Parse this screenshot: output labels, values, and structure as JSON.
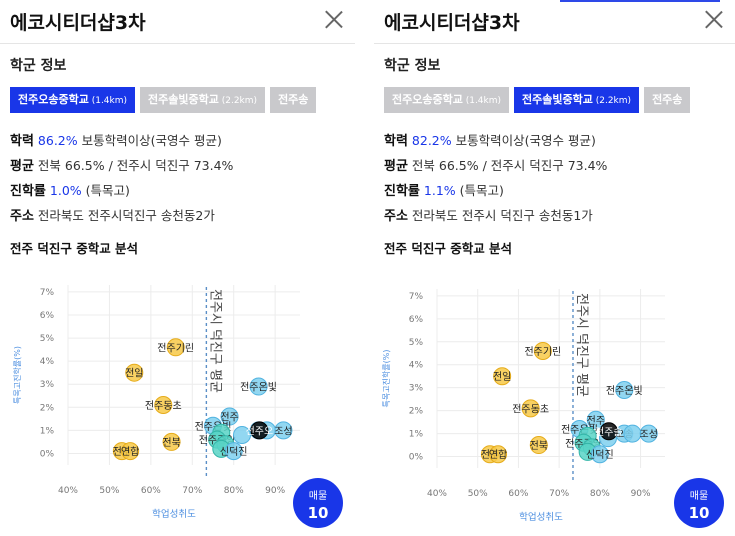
{
  "panels": [
    {
      "title": "에코시티더샵3차",
      "section_title": "학군 정보",
      "tabs": [
        {
          "name": "전주오송중학교",
          "dist": "(1.4km)",
          "active": true
        },
        {
          "name": "전주솔빛중학교",
          "dist": "(2.2km)",
          "active": false
        },
        {
          "name": "전주송",
          "dist": "",
          "active": false
        }
      ],
      "rows": {
        "academic": {
          "label": "학력",
          "value": "86.2%",
          "rest": "보통학력이상(국영수 평균)"
        },
        "average": {
          "label": "평균",
          "rest": "전북 66.5% / 전주시 덕진구 73.4%"
        },
        "advance": {
          "label": "진학률",
          "value": "1.0%",
          "rest": "(특목고)"
        },
        "address": {
          "label": "주소",
          "rest": "전라북도 전주시덕진구 송천동2가"
        }
      },
      "chart_title": "전주 덕진구 중학교 분석",
      "badge": {
        "label": "매물",
        "count": "10"
      }
    },
    {
      "title": "에코시티더샵3차",
      "section_title": "학군 정보",
      "tabs": [
        {
          "name": "전주오송중학교",
          "dist": "(1.4km)",
          "active": false
        },
        {
          "name": "전주솔빛중학교",
          "dist": "(2.2km)",
          "active": true
        },
        {
          "name": "전주송",
          "dist": "",
          "active": false
        }
      ],
      "rows": {
        "academic": {
          "label": "학력",
          "value": "82.2%",
          "rest": "보통학력이상(국영수 평균)"
        },
        "average": {
          "label": "평균",
          "rest": "전북 66.5% / 전주시 덕진구 73.4%"
        },
        "advance": {
          "label": "진학률",
          "value": "1.1%",
          "rest": "(특목고)"
        },
        "address": {
          "label": "주소",
          "rest": "전라북도 전주시 덕진구 송천동1가"
        }
      },
      "chart_title": "전주 덕진구 중학교 분석",
      "badge": {
        "label": "매물",
        "count": "10"
      }
    }
  ],
  "colors": {
    "accent": "#1936e8",
    "low": "#f7c948",
    "high": "#7fd0ee",
    "teal": "#58d3c6",
    "selected": "#000000"
  },
  "chart_data": {
    "type": "scatter",
    "xlabel": "학업성취도",
    "ylabel": "특목고진학률(%)",
    "x_ticks": [
      "40%",
      "50%",
      "60%",
      "70%",
      "80%",
      "90%"
    ],
    "y_ticks": [
      "0%",
      "1%",
      "2%",
      "3%",
      "4%",
      "5%",
      "6%",
      "7%"
    ],
    "xlim": [
      40,
      96
    ],
    "ylim": [
      -0.5,
      7.3
    ],
    "ref_line": {
      "x": 73.4,
      "label": "전주시 덕진구 평균"
    },
    "series": [
      {
        "points": [
          {
            "x": 66,
            "y": 4.6,
            "label": "전주기린",
            "group": "low"
          },
          {
            "x": 56,
            "y": 3.5,
            "label": "전일",
            "group": "low"
          },
          {
            "x": 63,
            "y": 2.1,
            "label": "전주동초",
            "group": "low"
          },
          {
            "x": 65,
            "y": 0.5,
            "label": "전북",
            "group": "low"
          },
          {
            "x": 53,
            "y": 0.1,
            "label": "전주",
            "group": "low"
          },
          {
            "x": 55,
            "y": 0.1,
            "label": "연합",
            "group": "low"
          },
          {
            "x": 86,
            "y": 2.9,
            "label": "전주온빛",
            "group": "high"
          },
          {
            "x": 79,
            "y": 1.6,
            "label": "전주",
            "group": "high"
          },
          {
            "x": 75,
            "y": 1.2,
            "label": "전주온빛",
            "group": "high"
          },
          {
            "x": 77,
            "y": 0.9,
            "label": "",
            "group": "teal"
          },
          {
            "x": 76,
            "y": 0.6,
            "label": "전주중앙",
            "group": "teal"
          },
          {
            "x": 78,
            "y": 0.4,
            "label": "",
            "group": "teal"
          },
          {
            "x": 77,
            "y": 0.2,
            "label": "",
            "group": "teal"
          },
          {
            "x": 80,
            "y": 0.1,
            "label": "신덕진",
            "group": "high"
          },
          {
            "x": 86,
            "y": 1.0,
            "label": "오송",
            "group": "high"
          },
          {
            "x": 88,
            "y": 1.0,
            "label": "",
            "group": "high"
          },
          {
            "x": 92,
            "y": 1.0,
            "label": "조성",
            "group": "high"
          },
          {
            "x": 82,
            "y": 0.8,
            "label": "",
            "group": "high"
          },
          {
            "x": 86.2,
            "y": 1.0,
            "label": "전주오",
            "group": "selected",
            "panel": 0
          },
          {
            "x": 82.2,
            "y": 1.1,
            "label": "전주솔",
            "group": "selected",
            "panel": 1
          }
        ]
      }
    ]
  }
}
